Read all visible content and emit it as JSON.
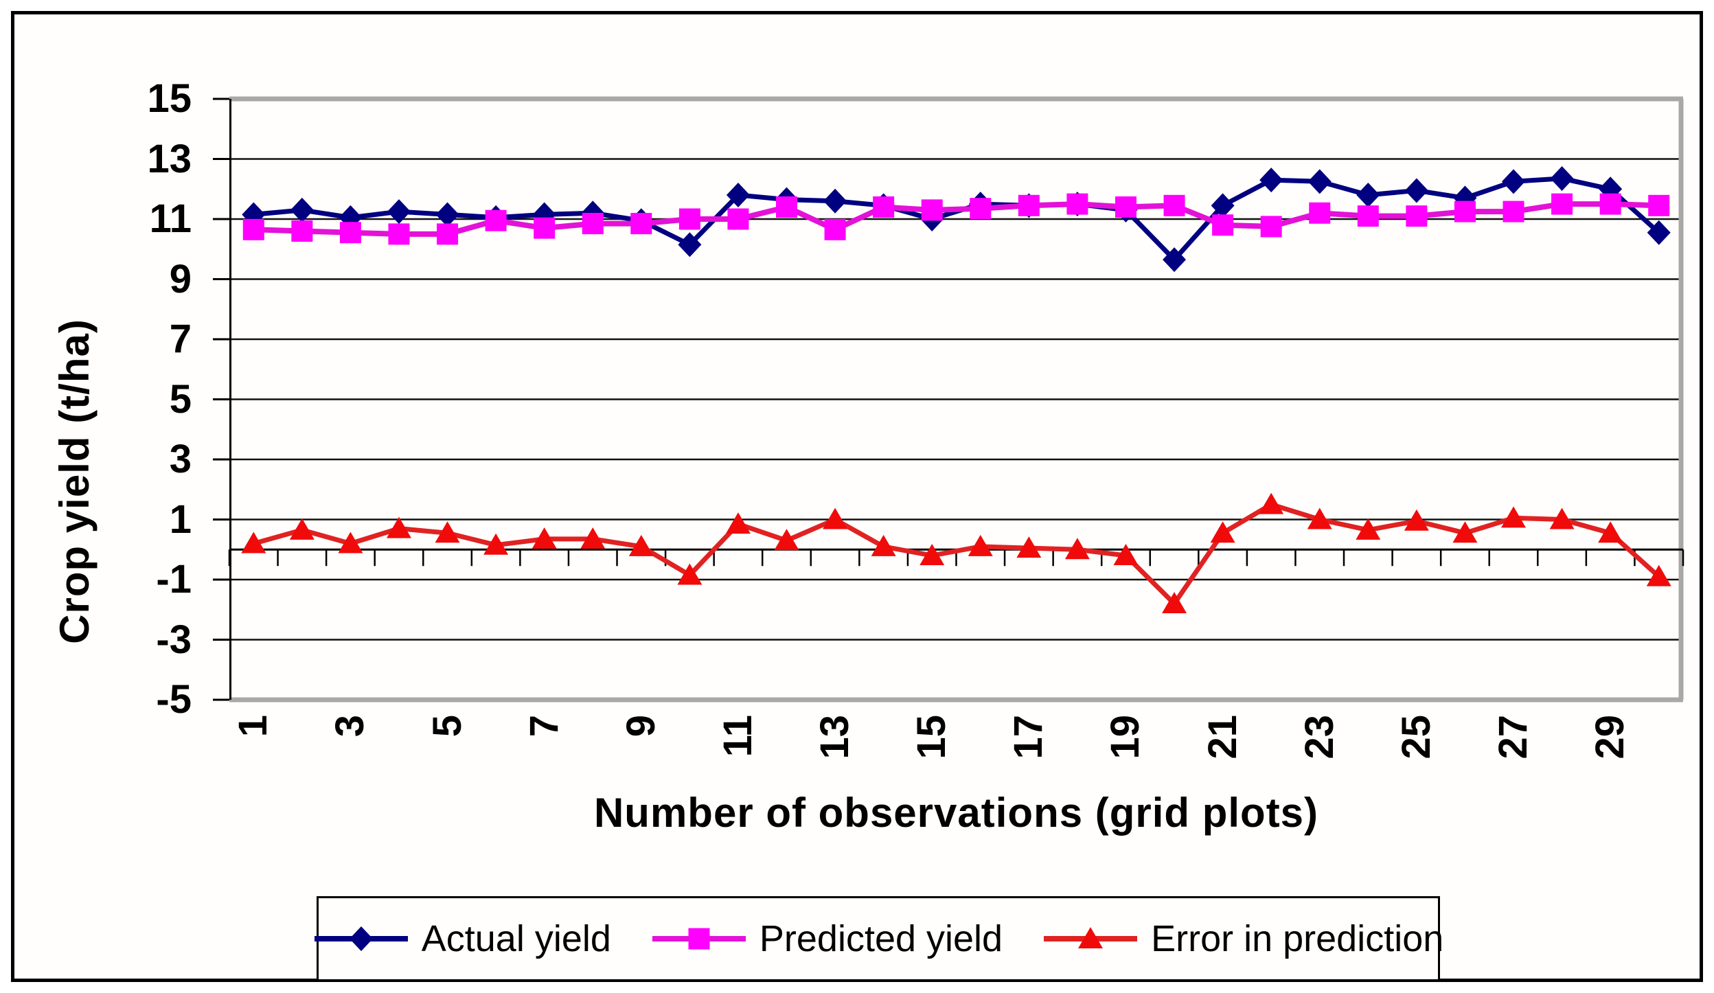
{
  "chart_data": {
    "type": "line",
    "title": "",
    "xlabel": "Number of observations (grid plots)",
    "ylabel": "Crop yield (t/ha)",
    "ylim": [
      -5,
      15
    ],
    "ytick_step": 2,
    "yticks": [
      15,
      13,
      11,
      9,
      7,
      5,
      3,
      1,
      -1,
      -3,
      -5
    ],
    "xticks_shown": [
      1,
      3,
      5,
      7,
      9,
      11,
      13,
      15,
      17,
      19,
      21,
      23,
      25,
      27,
      29
    ],
    "categories": [
      1,
      2,
      3,
      4,
      5,
      6,
      7,
      8,
      9,
      10,
      11,
      12,
      13,
      14,
      15,
      16,
      17,
      18,
      19,
      20,
      21,
      22,
      23,
      24,
      25,
      26,
      27,
      28,
      29,
      30
    ],
    "grid": "horizontal",
    "legend_position": "bottom",
    "axis_cross_y": 0,
    "series": [
      {
        "name": "Actual yield",
        "marker": "diamond",
        "color": "#000080",
        "line_color": "#000080",
        "values": [
          11.15,
          11.3,
          11.05,
          11.25,
          11.15,
          11.05,
          11.15,
          11.2,
          10.95,
          10.15,
          11.8,
          11.65,
          11.6,
          11.45,
          11.0,
          11.5,
          11.45,
          11.5,
          11.3,
          9.65,
          11.45,
          12.3,
          12.25,
          11.8,
          11.95,
          11.7,
          12.25,
          12.35,
          12.0,
          10.55
        ]
      },
      {
        "name": "Predicted yield",
        "marker": "square",
        "color": "#ff00ff",
        "line_color": "#e312d8",
        "values": [
          10.65,
          10.6,
          10.55,
          10.5,
          10.5,
          10.95,
          10.7,
          10.85,
          10.85,
          11.0,
          11.0,
          11.4,
          10.65,
          11.4,
          11.3,
          11.35,
          11.45,
          11.5,
          11.4,
          11.45,
          10.8,
          10.75,
          11.2,
          11.1,
          11.1,
          11.25,
          11.25,
          11.5,
          11.5,
          11.45
        ]
      },
      {
        "name": "Error in prediction",
        "marker": "triangle",
        "color": "#f00a0a",
        "line_color": "#e02222",
        "values": [
          0.2,
          0.65,
          0.2,
          0.7,
          0.55,
          0.15,
          0.35,
          0.35,
          0.1,
          -0.85,
          0.85,
          0.3,
          1.0,
          0.1,
          -0.2,
          0.1,
          0.05,
          0.0,
          -0.2,
          -1.8,
          0.55,
          1.5,
          1.0,
          0.65,
          0.95,
          0.55,
          1.05,
          1.0,
          0.55,
          -0.9
        ]
      }
    ],
    "colors": {
      "gridline": "#111111",
      "plot_border_gray": "#a8a8a8",
      "axis_black": "#000000",
      "background": "#fffefc"
    }
  }
}
